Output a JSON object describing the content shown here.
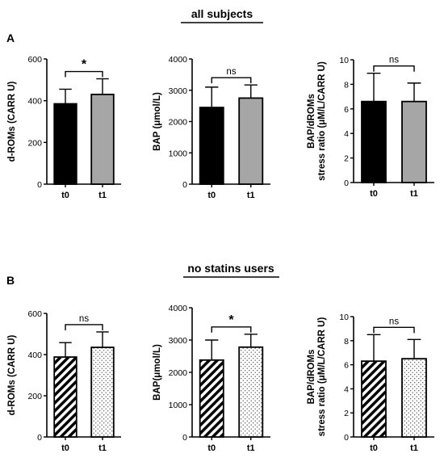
{
  "figure": {
    "panel_a_label": "A",
    "panel_b_label": "B",
    "section_a_title": "all subjects",
    "section_b_title": "no statins users"
  },
  "chart_data": [
    {
      "id": "A1",
      "type": "bar",
      "categories": [
        "t0",
        "t1"
      ],
      "values": [
        385,
        430
      ],
      "errors": [
        70,
        75
      ],
      "ylabel": [
        "d-ROMs (CARR U)"
      ],
      "ylim": [
        0,
        600
      ],
      "yticks": [
        0,
        200,
        400,
        600
      ],
      "significance": "*",
      "fills": [
        "black",
        "gray"
      ]
    },
    {
      "id": "A2",
      "type": "bar",
      "categories": [
        "t0",
        "t1"
      ],
      "values": [
        2450,
        2750
      ],
      "errors": [
        650,
        420
      ],
      "ylabel": [
        "BAP (μmol/L)"
      ],
      "ylim": [
        0,
        4000
      ],
      "yticks": [
        0,
        1000,
        2000,
        3000,
        4000
      ],
      "significance": "ns",
      "fills": [
        "black",
        "gray"
      ]
    },
    {
      "id": "A3",
      "type": "bar",
      "categories": [
        "t0",
        "t1"
      ],
      "values": [
        6.6,
        6.6
      ],
      "errors": [
        2.3,
        1.5
      ],
      "ylabel": [
        "BAP/dROMs",
        "stress ratio (μM/L/CARR U)"
      ],
      "ylim": [
        0,
        10
      ],
      "yticks": [
        0,
        2,
        4,
        6,
        8,
        10
      ],
      "significance": "ns",
      "fills": [
        "black",
        "gray"
      ]
    },
    {
      "id": "B1",
      "type": "bar",
      "categories": [
        "t0",
        "t1"
      ],
      "values": [
        388,
        435
      ],
      "errors": [
        70,
        75
      ],
      "ylabel": [
        "d-ROMs (CARR U)"
      ],
      "ylim": [
        0,
        600
      ],
      "yticks": [
        0,
        200,
        400,
        600
      ],
      "significance": "ns",
      "fills": [
        "hatch",
        "dots"
      ]
    },
    {
      "id": "B2",
      "type": "bar",
      "categories": [
        "t0",
        "t1"
      ],
      "values": [
        2380,
        2780
      ],
      "errors": [
        620,
        400
      ],
      "ylabel": [
        "BAP(μmol/L)"
      ],
      "ylim": [
        0,
        4000
      ],
      "yticks": [
        0,
        1000,
        2000,
        3000,
        4000
      ],
      "significance": "*",
      "fills": [
        "hatch",
        "dots"
      ]
    },
    {
      "id": "B3",
      "type": "bar",
      "categories": [
        "t0",
        "t1"
      ],
      "values": [
        6.3,
        6.5
      ],
      "errors": [
        2.2,
        1.6
      ],
      "ylabel": [
        "BAP/dROMs",
        "stress ratio (μM/L/CARR U)"
      ],
      "ylim": [
        0,
        10
      ],
      "yticks": [
        0,
        2,
        4,
        6,
        8,
        10
      ],
      "significance": "ns",
      "fills": [
        "hatch",
        "dots"
      ]
    }
  ]
}
